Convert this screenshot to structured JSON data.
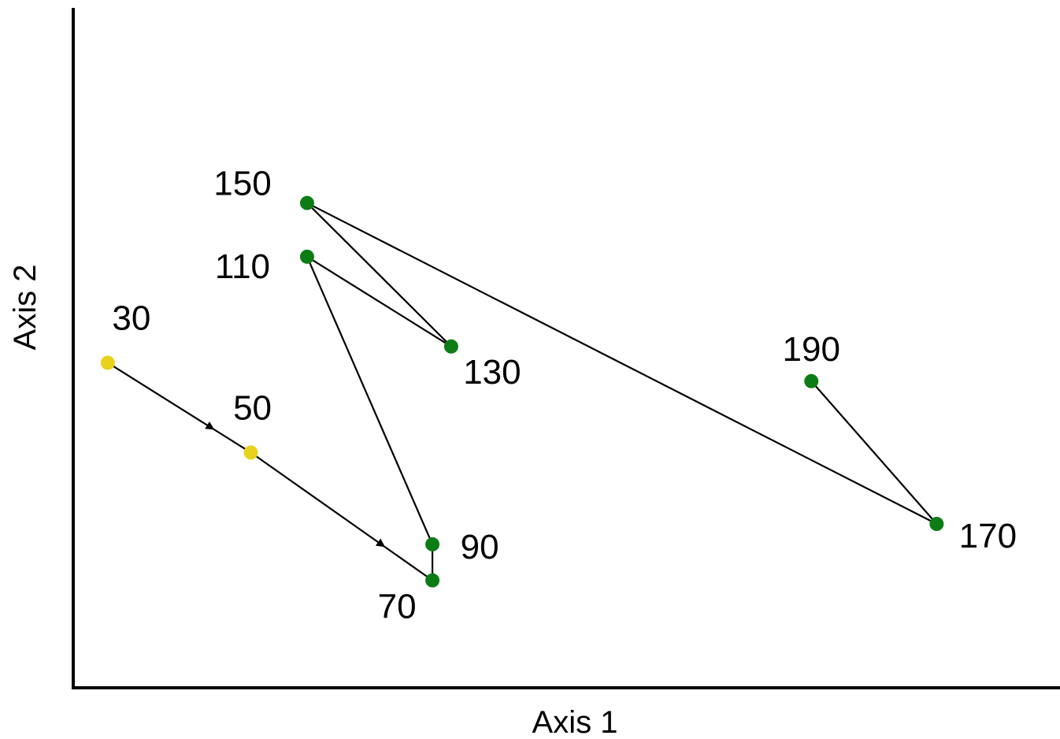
{
  "chart_data": {
    "type": "scatter",
    "title": "",
    "xlabel": "Axis 1",
    "ylabel": "Axis 2",
    "xlim": [
      0,
      1
    ],
    "ylim": [
      0,
      1
    ],
    "grid": false,
    "legend": "none",
    "colors": {
      "yellow": "#e8d21c",
      "green": "#0b7d14",
      "line": "#000000"
    },
    "points": [
      {
        "label": "30",
        "x": 0.035,
        "y": 0.478,
        "color": "yellow"
      },
      {
        "label": "50",
        "x": 0.18,
        "y": 0.346,
        "color": "yellow"
      },
      {
        "label": "70",
        "x": 0.364,
        "y": 0.158,
        "color": "green"
      },
      {
        "label": "90",
        "x": 0.364,
        "y": 0.211,
        "color": "green"
      },
      {
        "label": "110",
        "x": 0.237,
        "y": 0.634,
        "color": "green"
      },
      {
        "label": "130",
        "x": 0.383,
        "y": 0.502,
        "color": "green"
      },
      {
        "label": "150",
        "x": 0.237,
        "y": 0.713,
        "color": "green"
      },
      {
        "label": "170",
        "x": 0.875,
        "y": 0.241,
        "color": "green"
      },
      {
        "label": "190",
        "x": 0.748,
        "y": 0.451,
        "color": "green"
      }
    ],
    "arrows": [
      {
        "from": "30",
        "to": "50"
      },
      {
        "from": "50",
        "to": "70"
      }
    ],
    "connections": [
      {
        "from": "70",
        "to": "90"
      },
      {
        "from": "90",
        "to": "110"
      },
      {
        "from": "110",
        "to": "130"
      },
      {
        "from": "130",
        "to": "150"
      },
      {
        "from": "150",
        "to": "170"
      },
      {
        "from": "170",
        "to": "190"
      }
    ]
  }
}
